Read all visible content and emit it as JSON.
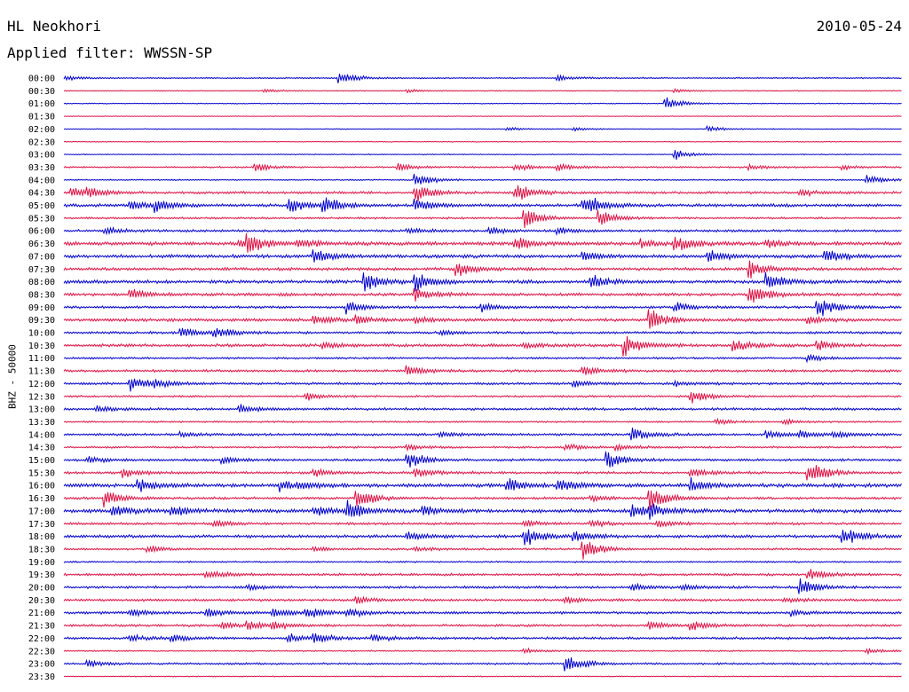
{
  "header": {
    "station": "HL Neokhori",
    "date": "2010-05-24",
    "filter": "Applied filter: WWSSN-SP"
  },
  "colors": {
    "even_row": "#0000cc",
    "odd_row": "#dd1144",
    "background": "#ffffff",
    "text": "#000000"
  },
  "chart_data": {
    "type": "seismogram-helicorder",
    "title": "HL Neokhori",
    "date": "2010-05-24",
    "filter": "WWSSN-SP",
    "ylabel": "BHZ - 50000",
    "row_minutes": 30,
    "alternating_colors": [
      "blue",
      "red"
    ],
    "rows": [
      {
        "label": "00:00",
        "noise": 0.8,
        "events": [
          [
            0.0,
            3
          ],
          [
            0.33,
            8
          ],
          [
            0.59,
            4
          ]
        ]
      },
      {
        "label": "00:30",
        "noise": 0.6,
        "events": [
          [
            0.24,
            2
          ],
          [
            0.41,
            2
          ],
          [
            0.73,
            2
          ]
        ]
      },
      {
        "label": "01:00",
        "noise": 0.6,
        "events": [
          [
            0.72,
            7
          ]
        ]
      },
      {
        "label": "01:30",
        "noise": 0.4,
        "events": []
      },
      {
        "label": "02:00",
        "noise": 0.5,
        "events": [
          [
            0.53,
            2
          ],
          [
            0.61,
            2
          ],
          [
            0.77,
            3
          ]
        ]
      },
      {
        "label": "02:30",
        "noise": 0.5,
        "events": []
      },
      {
        "label": "03:00",
        "noise": 0.6,
        "events": [
          [
            0.73,
            6
          ]
        ]
      },
      {
        "label": "03:30",
        "noise": 1.0,
        "events": [
          [
            0.23,
            5
          ],
          [
            0.4,
            6
          ],
          [
            0.54,
            5
          ],
          [
            0.59,
            4
          ],
          [
            0.82,
            3
          ],
          [
            0.93,
            3
          ]
        ]
      },
      {
        "label": "04:00",
        "noise": 0.8,
        "events": [
          [
            0.42,
            9
          ],
          [
            0.96,
            6
          ]
        ]
      },
      {
        "label": "04:30",
        "noise": 1.5,
        "events": [
          [
            0.01,
            6
          ],
          [
            0.03,
            6
          ],
          [
            0.42,
            12
          ],
          [
            0.54,
            12
          ],
          [
            0.88,
            4
          ]
        ]
      },
      {
        "label": "05:00",
        "noise": 1.8,
        "events": [
          [
            0.08,
            6
          ],
          [
            0.11,
            7
          ],
          [
            0.27,
            10
          ],
          [
            0.31,
            10
          ],
          [
            0.42,
            10
          ],
          [
            0.62,
            7
          ],
          [
            0.63,
            6
          ]
        ]
      },
      {
        "label": "05:30",
        "noise": 1.2,
        "events": [
          [
            0.55,
            13
          ],
          [
            0.64,
            10
          ]
        ]
      },
      {
        "label": "06:00",
        "noise": 1.5,
        "events": [
          [
            0.05,
            4
          ],
          [
            0.41,
            4
          ],
          [
            0.51,
            4
          ],
          [
            0.59,
            4
          ]
        ]
      },
      {
        "label": "06:30",
        "noise": 2.2,
        "events": [
          [
            0.21,
            6
          ],
          [
            0.22,
            10
          ],
          [
            0.28,
            6
          ],
          [
            0.54,
            8
          ],
          [
            0.69,
            5
          ],
          [
            0.73,
            10
          ],
          [
            0.84,
            4
          ]
        ]
      },
      {
        "label": "07:00",
        "noise": 2.0,
        "events": [
          [
            0.3,
            8
          ],
          [
            0.62,
            6
          ],
          [
            0.77,
            8
          ],
          [
            0.91,
            8
          ]
        ]
      },
      {
        "label": "07:30",
        "noise": 1.8,
        "events": [
          [
            0.47,
            10
          ],
          [
            0.82,
            10
          ]
        ]
      },
      {
        "label": "08:00",
        "noise": 2.0,
        "events": [
          [
            0.36,
            12
          ],
          [
            0.42,
            12
          ],
          [
            0.63,
            8
          ],
          [
            0.84,
            12
          ]
        ]
      },
      {
        "label": "08:30",
        "noise": 1.8,
        "events": [
          [
            0.08,
            8
          ],
          [
            0.42,
            8
          ],
          [
            0.82,
            14
          ]
        ]
      },
      {
        "label": "09:00",
        "noise": 1.5,
        "events": [
          [
            0.34,
            8
          ],
          [
            0.5,
            5
          ],
          [
            0.73,
            6
          ],
          [
            0.9,
            14
          ]
        ]
      },
      {
        "label": "09:30",
        "noise": 1.8,
        "events": [
          [
            0.3,
            6
          ],
          [
            0.35,
            5
          ],
          [
            0.42,
            4
          ],
          [
            0.7,
            14
          ],
          [
            0.89,
            5
          ]
        ]
      },
      {
        "label": "10:00",
        "noise": 1.5,
        "events": [
          [
            0.14,
            6
          ],
          [
            0.18,
            7
          ],
          [
            0.45,
            3
          ]
        ]
      },
      {
        "label": "10:30",
        "noise": 1.8,
        "events": [
          [
            0.31,
            4
          ],
          [
            0.55,
            3
          ],
          [
            0.67,
            14
          ],
          [
            0.8,
            7
          ],
          [
            0.9,
            6
          ]
        ]
      },
      {
        "label": "11:00",
        "noise": 1.2,
        "events": [
          [
            0.89,
            4
          ]
        ]
      },
      {
        "label": "11:30",
        "noise": 1.5,
        "events": [
          [
            0.41,
            6
          ],
          [
            0.62,
            6
          ]
        ]
      },
      {
        "label": "12:00",
        "noise": 1.5,
        "events": [
          [
            0.08,
            10
          ],
          [
            0.11,
            4
          ],
          [
            0.61,
            4
          ],
          [
            0.73,
            3
          ]
        ]
      },
      {
        "label": "12:30",
        "noise": 1.2,
        "events": [
          [
            0.29,
            5
          ],
          [
            0.75,
            8
          ]
        ]
      },
      {
        "label": "13:00",
        "noise": 1.5,
        "events": [
          [
            0.04,
            4
          ],
          [
            0.21,
            6
          ]
        ]
      },
      {
        "label": "13:30",
        "noise": 1.0,
        "events": [
          [
            0.78,
            3
          ],
          [
            0.86,
            3
          ]
        ]
      },
      {
        "label": "14:00",
        "noise": 1.5,
        "events": [
          [
            0.14,
            3
          ],
          [
            0.45,
            3
          ],
          [
            0.68,
            8
          ],
          [
            0.84,
            4
          ],
          [
            0.88,
            4
          ],
          [
            0.92,
            4
          ]
        ]
      },
      {
        "label": "14:30",
        "noise": 1.2,
        "events": [
          [
            0.41,
            4
          ],
          [
            0.6,
            4
          ],
          [
            0.66,
            4
          ]
        ]
      },
      {
        "label": "15:00",
        "noise": 1.5,
        "events": [
          [
            0.03,
            4
          ],
          [
            0.19,
            4
          ],
          [
            0.41,
            12
          ],
          [
            0.65,
            10
          ]
        ]
      },
      {
        "label": "15:30",
        "noise": 1.5,
        "events": [
          [
            0.07,
            6
          ],
          [
            0.3,
            5
          ],
          [
            0.42,
            6
          ],
          [
            0.75,
            6
          ],
          [
            0.89,
            14
          ]
        ]
      },
      {
        "label": "16:00",
        "noise": 2.2,
        "events": [
          [
            0.09,
            8
          ],
          [
            0.26,
            6
          ],
          [
            0.28,
            4
          ],
          [
            0.53,
            10
          ],
          [
            0.59,
            8
          ],
          [
            0.75,
            8
          ]
        ]
      },
      {
        "label": "16:30",
        "noise": 1.5,
        "events": [
          [
            0.05,
            10
          ],
          [
            0.35,
            14
          ],
          [
            0.63,
            4
          ],
          [
            0.7,
            14
          ]
        ]
      },
      {
        "label": "17:00",
        "noise": 2.2,
        "events": [
          [
            0.06,
            8
          ],
          [
            0.13,
            8
          ],
          [
            0.3,
            6
          ],
          [
            0.34,
            12
          ],
          [
            0.43,
            6
          ],
          [
            0.68,
            8
          ],
          [
            0.7,
            8
          ]
        ]
      },
      {
        "label": "17:30",
        "noise": 1.5,
        "events": [
          [
            0.18,
            4
          ],
          [
            0.55,
            4
          ],
          [
            0.63,
            4
          ],
          [
            0.71,
            4
          ]
        ]
      },
      {
        "label": "18:00",
        "noise": 1.8,
        "events": [
          [
            0.41,
            6
          ],
          [
            0.55,
            12
          ],
          [
            0.61,
            6
          ],
          [
            0.93,
            14
          ]
        ]
      },
      {
        "label": "18:30",
        "noise": 1.2,
        "events": [
          [
            0.1,
            5
          ],
          [
            0.3,
            3
          ],
          [
            0.42,
            3
          ],
          [
            0.62,
            12
          ]
        ]
      },
      {
        "label": "19:00",
        "noise": 1.0,
        "events": []
      },
      {
        "label": "19:30",
        "noise": 1.5,
        "events": [
          [
            0.17,
            6
          ],
          [
            0.89,
            6
          ]
        ]
      },
      {
        "label": "20:00",
        "noise": 1.5,
        "events": [
          [
            0.22,
            3
          ],
          [
            0.68,
            4
          ],
          [
            0.74,
            4
          ],
          [
            0.88,
            10
          ]
        ]
      },
      {
        "label": "20:30",
        "noise": 1.5,
        "events": [
          [
            0.35,
            4
          ],
          [
            0.6,
            4
          ],
          [
            0.86,
            3
          ]
        ]
      },
      {
        "label": "21:00",
        "noise": 1.5,
        "events": [
          [
            0.08,
            5
          ],
          [
            0.17,
            6
          ],
          [
            0.25,
            6
          ],
          [
            0.29,
            8
          ],
          [
            0.34,
            5
          ],
          [
            0.87,
            4
          ]
        ]
      },
      {
        "label": "21:30",
        "noise": 1.5,
        "events": [
          [
            0.19,
            5
          ],
          [
            0.22,
            6
          ],
          [
            0.25,
            4
          ],
          [
            0.7,
            5
          ],
          [
            0.75,
            5
          ]
        ]
      },
      {
        "label": "22:00",
        "noise": 1.5,
        "events": [
          [
            0.08,
            4
          ],
          [
            0.13,
            4
          ],
          [
            0.27,
            5
          ],
          [
            0.3,
            6
          ],
          [
            0.37,
            4
          ]
        ]
      },
      {
        "label": "22:30",
        "noise": 0.8,
        "events": [
          [
            0.55,
            3
          ],
          [
            0.96,
            3
          ]
        ]
      },
      {
        "label": "23:00",
        "noise": 1.2,
        "events": [
          [
            0.03,
            4
          ],
          [
            0.6,
            12
          ]
        ]
      },
      {
        "label": "23:30",
        "noise": 0.6,
        "events": []
      }
    ]
  }
}
